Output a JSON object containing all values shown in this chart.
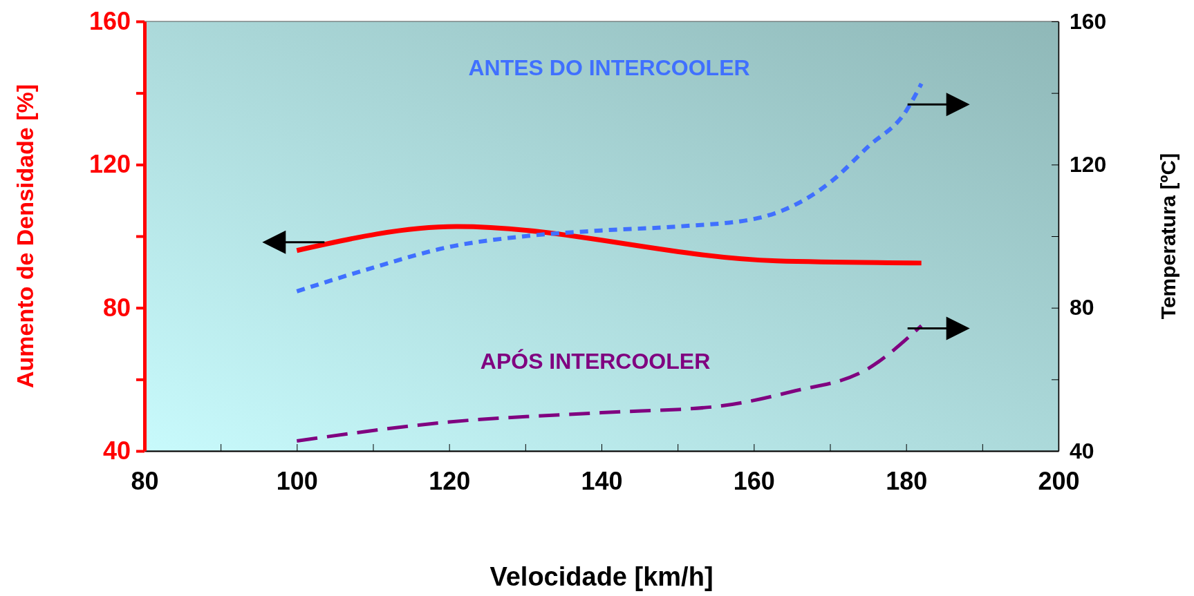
{
  "chart_data": {
    "type": "line",
    "xlabel": "Velocidade [km/h]",
    "ylabel": "Aumento de Densidade [%]",
    "y2label": "Temperatura [ºC]",
    "xlim": [
      80,
      200
    ],
    "xticks": [
      80,
      {
        "value": 90,
        "label": null
      },
      100,
      {
        "value": 110,
        "label": null
      },
      120,
      {
        "value": 130,
        "label": null
      },
      140,
      {
        "value": 150,
        "label": null
      },
      160,
      {
        "value": 170,
        "label": null
      },
      180,
      {
        "value": 190,
        "label": null
      },
      200
    ],
    "ylim": [
      40,
      160
    ],
    "yticks": [
      40,
      {
        "value": 60,
        "label": null
      },
      80,
      {
        "value": 100,
        "label": null
      },
      120,
      {
        "value": 140,
        "label": null
      },
      160
    ],
    "y2lim": [
      40,
      160
    ],
    "y2ticks": [
      40,
      {
        "value": 60,
        "label": null
      },
      80,
      {
        "value": 100,
        "label": null
      },
      120,
      {
        "value": 140,
        "label": null
      },
      160
    ],
    "grid": false,
    "marker": "none",
    "series": [
      {
        "color": "#ff0000",
        "line_style": "solid",
        "x": [
          100,
          121,
          163,
          182
        ],
        "values": [
          96,
          102.7,
          93.1,
          92.5
        ]
      },
      {
        "name": "ANTES DO INTERCOOLER",
        "axis": "y2",
        "color": "#4070ff",
        "line_style": "dotted",
        "x": [
          100,
          110,
          120,
          130,
          140,
          150,
          160,
          170,
          175,
          180,
          182
        ],
        "values": [
          84.6,
          91.2,
          97,
          100,
          101.6,
          102.7,
          104.8,
          115,
          125,
          135,
          142.6
        ]
      },
      {
        "name": "APÓS INTERCOOLER",
        "axis": "y2",
        "color": "#800080",
        "line_style": "dashed",
        "x": [
          100,
          120,
          140,
          155,
          165,
          175,
          182
        ],
        "values": [
          42.8,
          48.1,
          50.7,
          52.4,
          56.6,
          63,
          75
        ]
      }
    ]
  }
}
